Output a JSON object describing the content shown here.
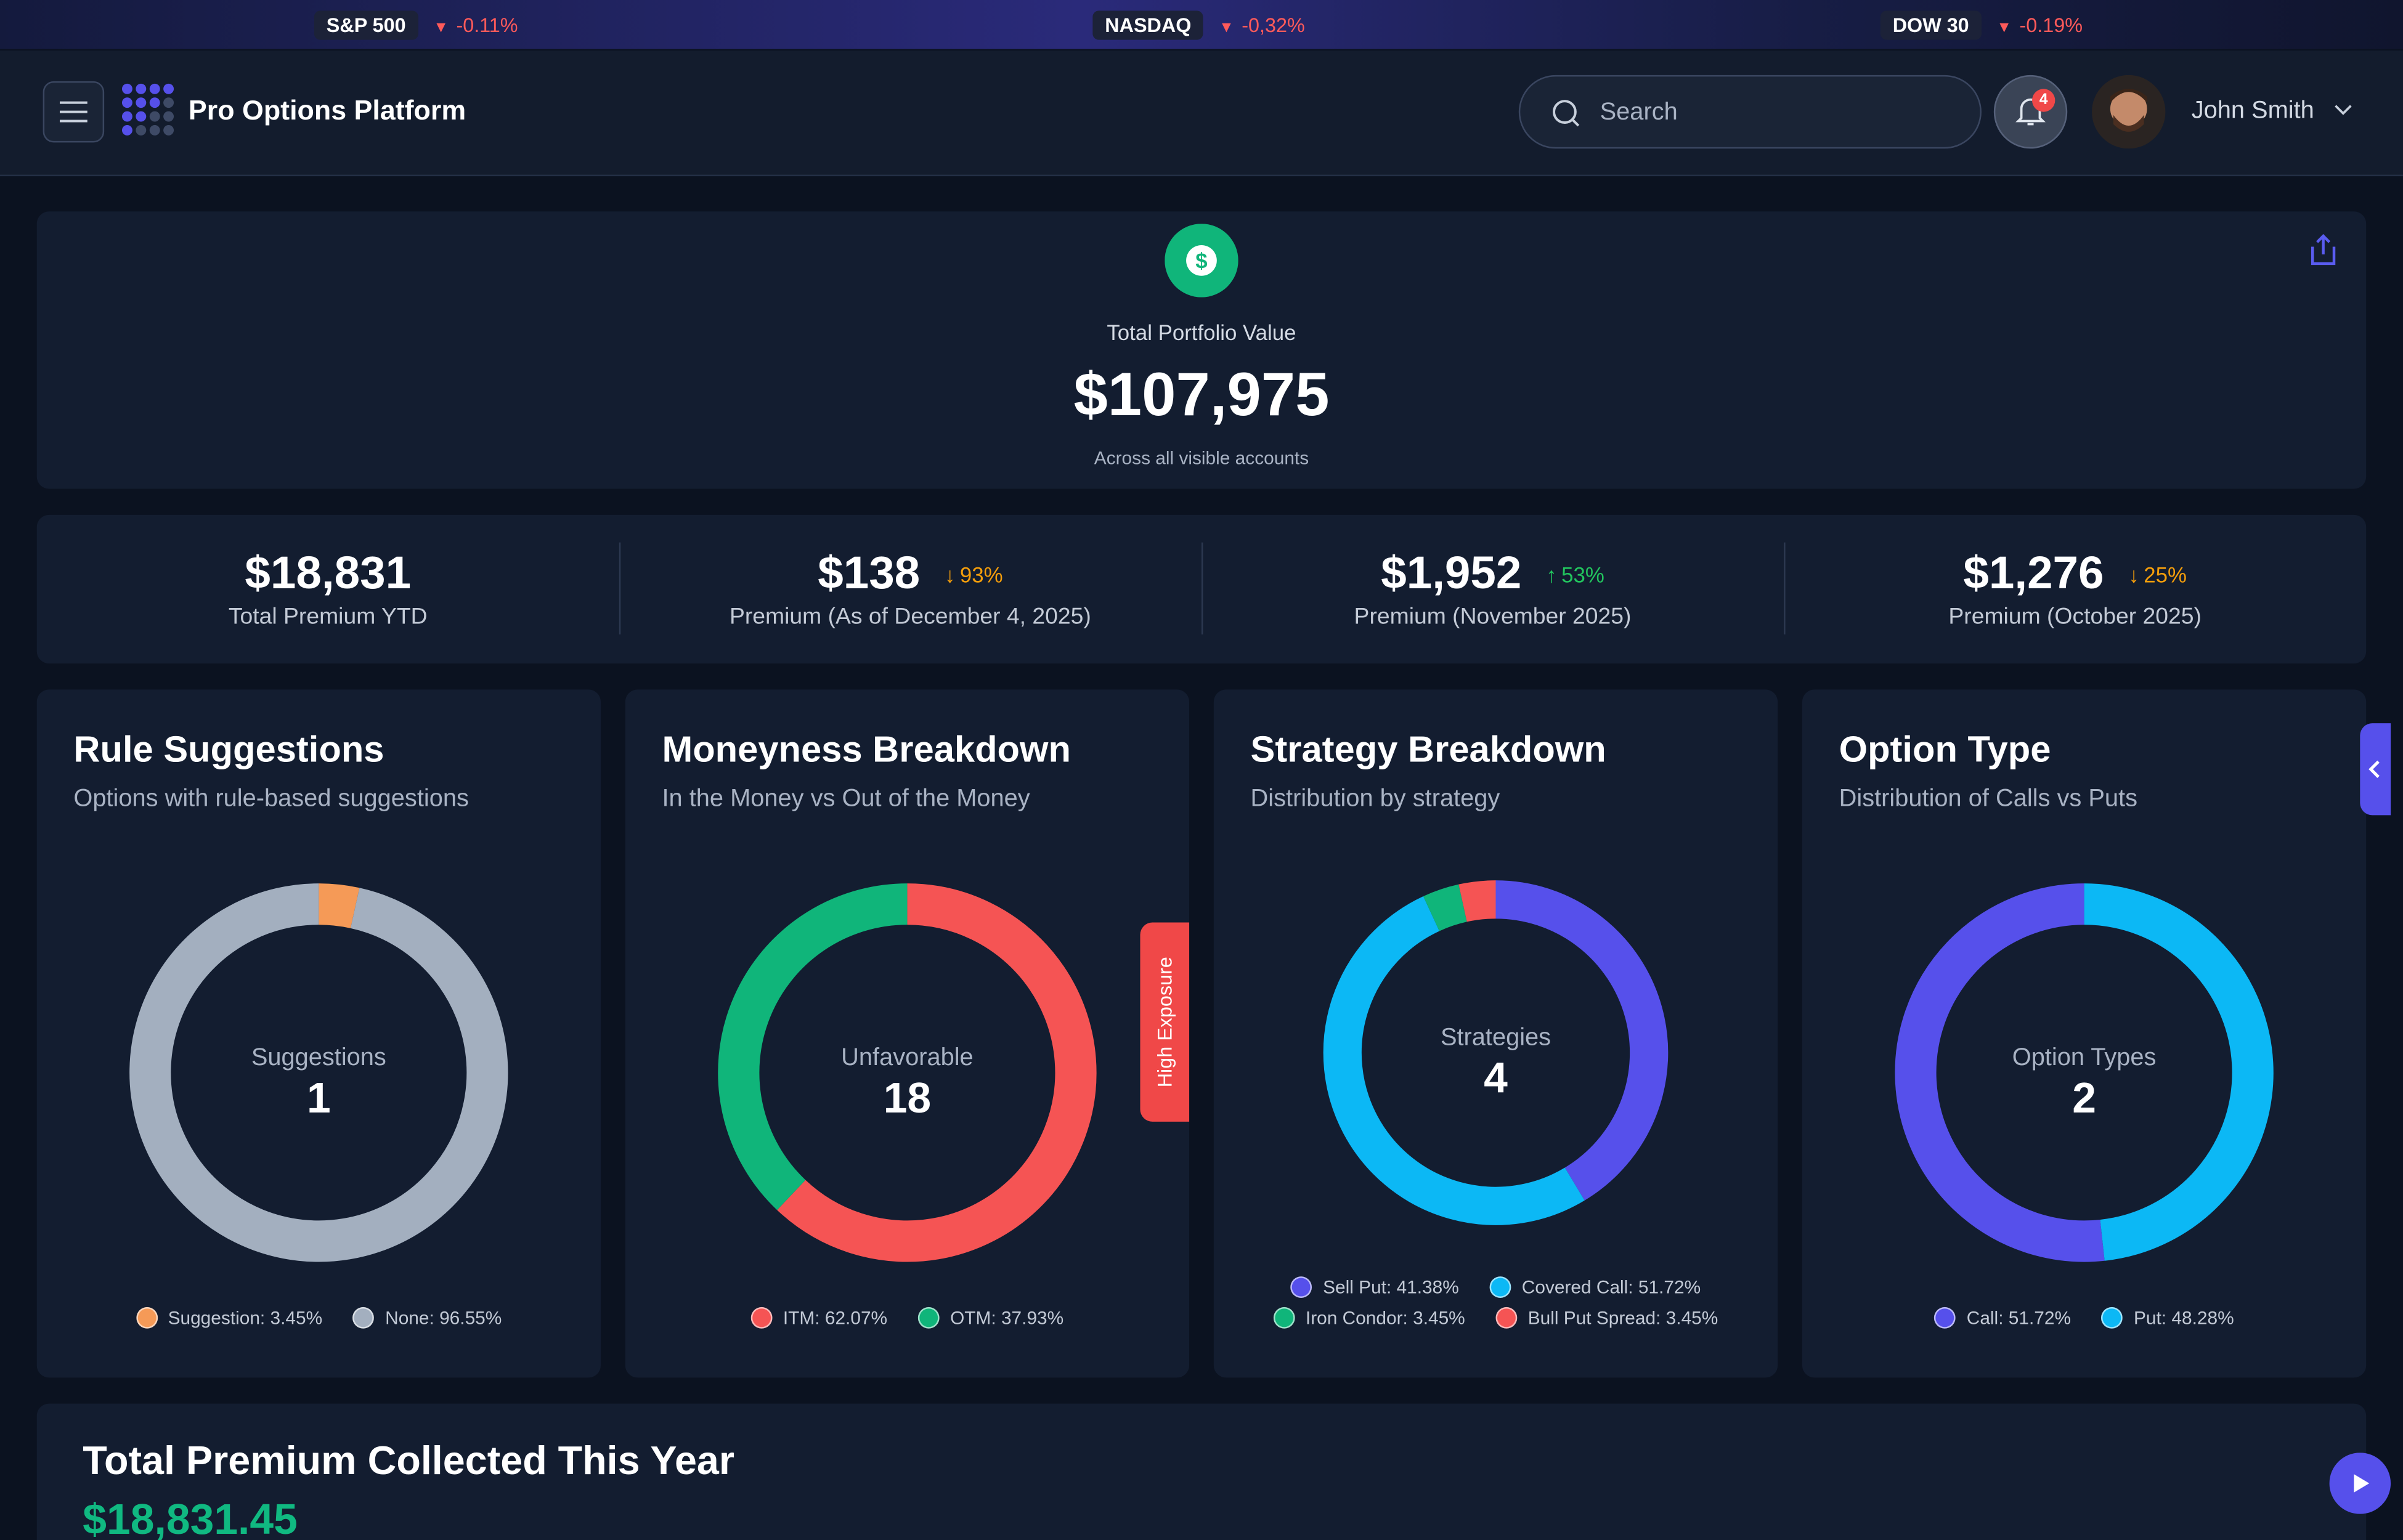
{
  "ticker": [
    {
      "name": "S&P 500",
      "change": "-0.11%"
    },
    {
      "name": "NASDAQ",
      "change": "-0,32%"
    },
    {
      "name": "DOW 30",
      "change": "-0.19%"
    }
  ],
  "header": {
    "title": "Pro Options Platform",
    "search_placeholder": "Search",
    "notifications": "4",
    "user": "John Smith"
  },
  "portfolio": {
    "label": "Total Portfolio Value",
    "value": "$107,975",
    "note": "Across all visible accounts"
  },
  "stats": [
    {
      "value": "$18,831",
      "label": "Total Premium YTD"
    },
    {
      "value": "$138",
      "change": "93%",
      "direction": "down",
      "label": "Premium (As of December 4, 2025)"
    },
    {
      "value": "$1,952",
      "change": "53%",
      "direction": "up",
      "label": "Premium (November 2025)"
    },
    {
      "value": "$1,276",
      "change": "25%",
      "direction": "down",
      "label": "Premium (October 2025)"
    }
  ],
  "cards": [
    {
      "title": "Rule Suggestions",
      "subtitle": "Options with rule-based suggestions",
      "center_label": "Suggestions",
      "center_value": "1",
      "segments": [
        {
          "label": "Suggestion: 3.45%",
          "value": 3.45,
          "color": "#f59a57"
        },
        {
          "label": "None: 96.55%",
          "value": 96.55,
          "color": "#a3afbf"
        }
      ]
    },
    {
      "title": "Moneyness Breakdown",
      "subtitle": "In the Money vs Out of the Money",
      "center_label": "Unfavorable",
      "center_value": "18",
      "segments": [
        {
          "label": "ITM: 62.07%",
          "value": 62.07,
          "color": "#f55454"
        },
        {
          "label": "OTM: 37.93%",
          "value": 37.93,
          "color": "#10b57a"
        }
      ]
    },
    {
      "title": "Strategy Breakdown",
      "subtitle": "Distribution by strategy",
      "center_label": "Strategies",
      "center_value": "4",
      "segments": [
        {
          "label": "Sell Put: 41.38%",
          "value": 41.38,
          "color": "#5650eb"
        },
        {
          "label": "Covered Call: 51.72%",
          "value": 51.72,
          "color": "#0cb8f5"
        },
        {
          "label": "Iron Condor: 3.45%",
          "value": 3.45,
          "color": "#10b57a"
        },
        {
          "label": "Bull Put Spread: 3.45%",
          "value": 3.45,
          "color": "#f55454"
        }
      ]
    },
    {
      "title": "Option Type",
      "subtitle": "Distribution of Calls vs Puts",
      "center_label": "Option Types",
      "center_value": "2",
      "segments": [
        {
          "label": "Call: 51.72%",
          "value": 51.72,
          "color": "#5650eb"
        },
        {
          "label": "Put: 48.28%",
          "value": 48.28,
          "color": "#0cb8f5"
        }
      ]
    }
  ],
  "tab": "High Exposure",
  "premium": {
    "title": "Total Premium Collected This Year",
    "value": "$18,831.45"
  }
}
